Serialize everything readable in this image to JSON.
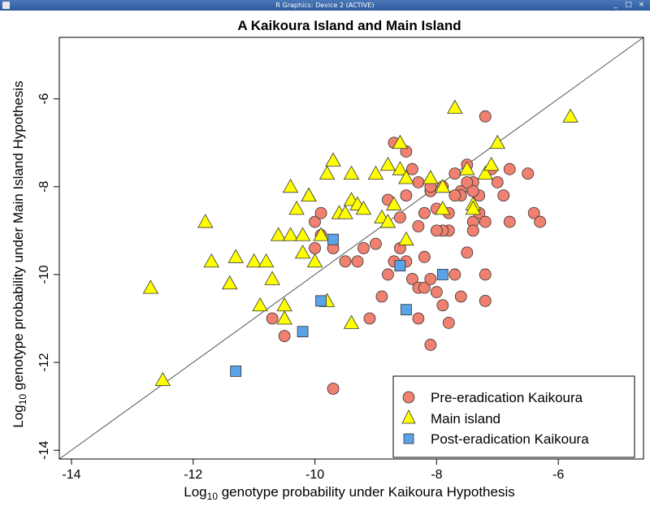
{
  "window": {
    "title": "R Graphics: Device 2 (ACTIVE)"
  },
  "chart_data": {
    "type": "scatter",
    "title": "A  Kaikoura Island and Main Island",
    "xlabel_prefix": "Log",
    "xlabel_sub": "10",
    "xlabel_rest": " genotype probability under Kaikoura Hypothesis",
    "ylabel_prefix": "Log",
    "ylabel_sub": "10",
    "ylabel_rest": " genotype probability under Main Island Hypothesis",
    "xlim": [
      -14.2,
      -4.6
    ],
    "ylim": [
      -14.2,
      -4.6
    ],
    "xticks": [
      -14,
      -12,
      -10,
      -8,
      -6
    ],
    "yticks": [
      -14,
      -12,
      -10,
      -8,
      -6
    ],
    "xtick_labels": [
      "-14",
      "-12",
      "-10",
      "-8",
      "-6"
    ],
    "ytick_labels": [
      "-14",
      "-12",
      "-10",
      "-8",
      "-6"
    ],
    "reference_line": "y = x",
    "legend_position": "bottom-right",
    "series": [
      {
        "name": "Pre-eradication Kaikoura",
        "marker": "circle",
        "color": "#f08070",
        "points": [
          [
            -10.5,
            -11.4
          ],
          [
            -10.7,
            -11.0
          ],
          [
            -9.7,
            -12.6
          ],
          [
            -10.0,
            -8.8
          ],
          [
            -9.9,
            -8.6
          ],
          [
            -10.0,
            -9.4
          ],
          [
            -9.9,
            -9.1
          ],
          [
            -9.7,
            -9.4
          ],
          [
            -9.5,
            -9.7
          ],
          [
            -9.3,
            -9.7
          ],
          [
            -9.2,
            -9.4
          ],
          [
            -9.0,
            -9.3
          ],
          [
            -8.9,
            -10.5
          ],
          [
            -8.8,
            -10.0
          ],
          [
            -8.7,
            -9.7
          ],
          [
            -9.1,
            -11.0
          ],
          [
            -8.6,
            -9.4
          ],
          [
            -8.5,
            -9.7
          ],
          [
            -8.4,
            -10.1
          ],
          [
            -8.3,
            -10.3
          ],
          [
            -8.2,
            -9.6
          ],
          [
            -8.2,
            -10.3
          ],
          [
            -8.1,
            -10.1
          ],
          [
            -8.0,
            -10.4
          ],
          [
            -7.9,
            -10.7
          ],
          [
            -7.8,
            -11.1
          ],
          [
            -7.7,
            -10.0
          ],
          [
            -7.6,
            -10.5
          ],
          [
            -7.5,
            -9.5
          ],
          [
            -8.3,
            -11.0
          ],
          [
            -8.1,
            -11.6
          ],
          [
            -8.7,
            -7.0
          ],
          [
            -8.5,
            -7.2
          ],
          [
            -8.3,
            -7.9
          ],
          [
            -8.1,
            -8.1
          ],
          [
            -8.0,
            -8.5
          ],
          [
            -7.9,
            -8.0
          ],
          [
            -7.8,
            -8.6
          ],
          [
            -7.8,
            -9.0
          ],
          [
            -7.7,
            -7.7
          ],
          [
            -7.6,
            -8.1
          ],
          [
            -7.5,
            -7.5
          ],
          [
            -7.4,
            -7.9
          ],
          [
            -7.3,
            -8.2
          ],
          [
            -7.4,
            -8.8
          ],
          [
            -7.3,
            -8.6
          ],
          [
            -7.2,
            -8.8
          ],
          [
            -7.2,
            -10.0
          ],
          [
            -7.2,
            -10.6
          ],
          [
            -7.1,
            -7.6
          ],
          [
            -7.0,
            -7.9
          ],
          [
            -6.9,
            -8.2
          ],
          [
            -6.8,
            -7.6
          ],
          [
            -6.8,
            -8.8
          ],
          [
            -6.5,
            -7.7
          ],
          [
            -6.4,
            -8.6
          ],
          [
            -6.3,
            -8.8
          ],
          [
            -7.2,
            -6.4
          ],
          [
            -8.5,
            -8.2
          ],
          [
            -8.3,
            -8.9
          ],
          [
            -8.6,
            -8.7
          ],
          [
            -7.9,
            -9.0
          ],
          [
            -8.2,
            -8.6
          ],
          [
            -7.6,
            -8.2
          ],
          [
            -8.0,
            -9.0
          ],
          [
            -7.4,
            -8.1
          ],
          [
            -8.4,
            -7.6
          ],
          [
            -8.8,
            -8.3
          ],
          [
            -7.5,
            -7.9
          ],
          [
            -7.4,
            -9.0
          ],
          [
            -7.7,
            -8.2
          ],
          [
            -8.1,
            -8.0
          ]
        ]
      },
      {
        "name": "Main island",
        "marker": "triangle",
        "color": "#ffff00",
        "points": [
          [
            -12.7,
            -10.3
          ],
          [
            -12.5,
            -12.4
          ],
          [
            -11.8,
            -8.8
          ],
          [
            -11.7,
            -9.7
          ],
          [
            -11.4,
            -10.2
          ],
          [
            -11.3,
            -9.6
          ],
          [
            -11.0,
            -9.7
          ],
          [
            -10.9,
            -10.7
          ],
          [
            -10.8,
            -9.7
          ],
          [
            -10.7,
            -10.1
          ],
          [
            -10.6,
            -9.1
          ],
          [
            -10.5,
            -10.7
          ],
          [
            -10.5,
            -11.0
          ],
          [
            -10.4,
            -9.1
          ],
          [
            -10.4,
            -8.0
          ],
          [
            -10.3,
            -8.5
          ],
          [
            -10.2,
            -9.5
          ],
          [
            -10.2,
            -9.1
          ],
          [
            -10.1,
            -8.2
          ],
          [
            -10.0,
            -9.7
          ],
          [
            -9.9,
            -9.1
          ],
          [
            -9.8,
            -10.6
          ],
          [
            -9.8,
            -7.7
          ],
          [
            -9.7,
            -7.4
          ],
          [
            -9.6,
            -8.6
          ],
          [
            -9.5,
            -8.6
          ],
          [
            -9.4,
            -8.3
          ],
          [
            -9.4,
            -7.7
          ],
          [
            -9.3,
            -8.4
          ],
          [
            -9.2,
            -8.5
          ],
          [
            -9.0,
            -7.7
          ],
          [
            -8.9,
            -8.7
          ],
          [
            -8.8,
            -8.8
          ],
          [
            -8.7,
            -8.4
          ],
          [
            -8.6,
            -7.0
          ],
          [
            -8.6,
            -7.6
          ],
          [
            -8.5,
            -7.8
          ],
          [
            -8.5,
            -9.2
          ],
          [
            -7.9,
            -8.5
          ],
          [
            -7.9,
            -8.0
          ],
          [
            -7.5,
            -7.6
          ],
          [
            -7.4,
            -8.4
          ],
          [
            -7.4,
            -8.5
          ],
          [
            -7.2,
            -7.7
          ],
          [
            -7.1,
            -7.5
          ],
          [
            -7.0,
            -7.0
          ],
          [
            -7.7,
            -6.2
          ],
          [
            -5.8,
            -6.4
          ],
          [
            -9.4,
            -11.1
          ],
          [
            -10.1,
            -8.2
          ],
          [
            -8.8,
            -7.5
          ],
          [
            -8.1,
            -7.8
          ]
        ]
      },
      {
        "name": "Post-eradication Kaikoura",
        "marker": "square",
        "color": "#5ba3e8",
        "points": [
          [
            -11.3,
            -12.2
          ],
          [
            -10.2,
            -11.3
          ],
          [
            -9.9,
            -10.6
          ],
          [
            -9.7,
            -9.2
          ],
          [
            -8.6,
            -9.8
          ],
          [
            -8.5,
            -10.8
          ],
          [
            -7.9,
            -10.0
          ]
        ]
      }
    ]
  }
}
